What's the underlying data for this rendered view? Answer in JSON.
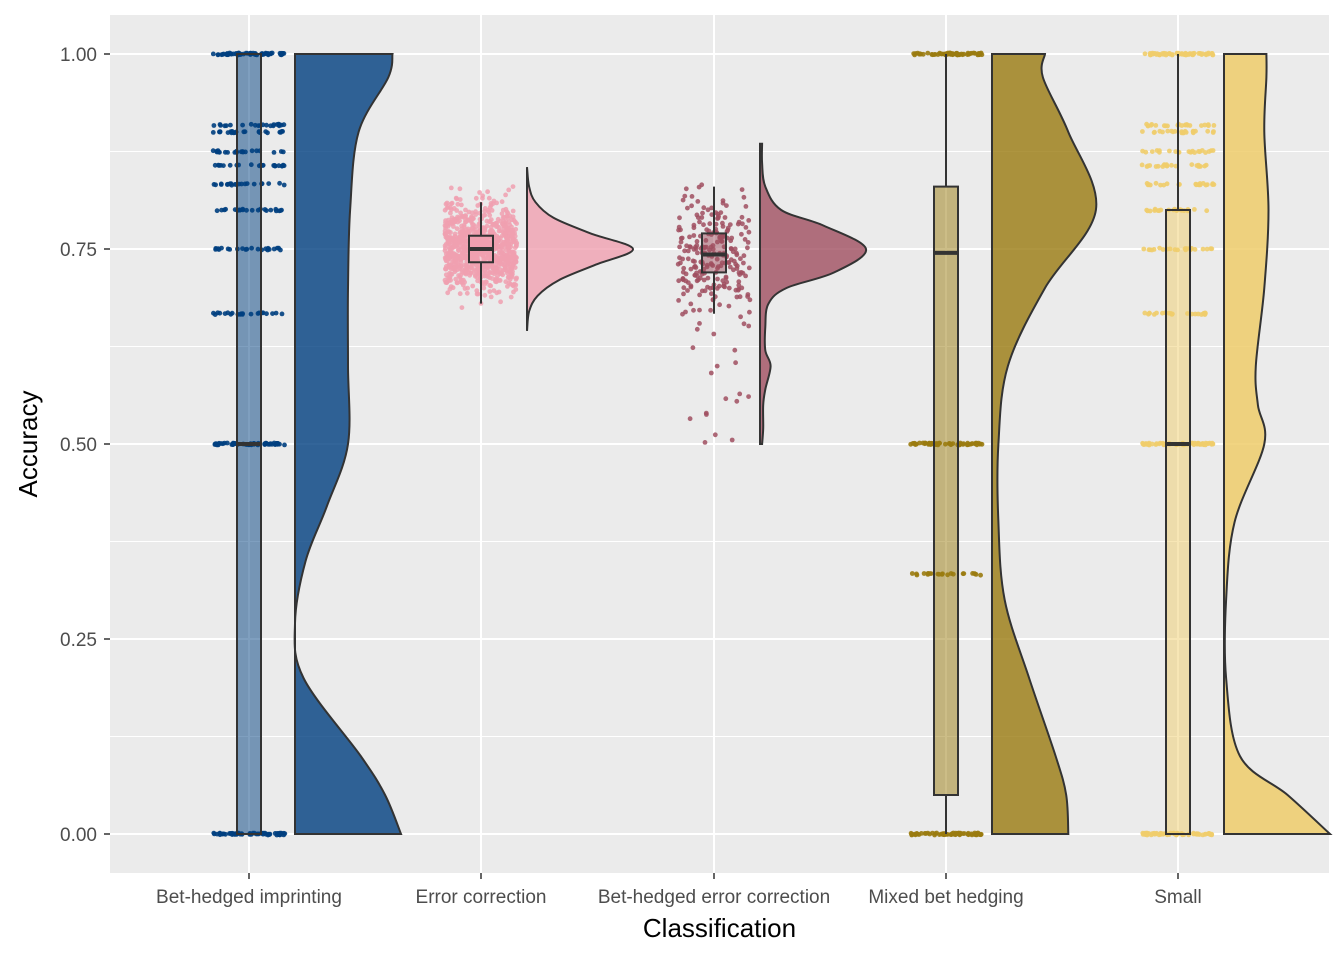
{
  "chart_data": {
    "type": "raincloud",
    "title": "",
    "xlabel": "Classification",
    "ylabel": "Accuracy",
    "ylim": [
      -0.05,
      1.05
    ],
    "y_ticks": [
      0.0,
      0.25,
      0.5,
      0.75,
      1.0
    ],
    "y_tick_labels": [
      "0.00",
      "0.25",
      "0.50",
      "0.75",
      "1.00"
    ],
    "grid": true,
    "legend": "none",
    "categories": [
      "Bet-hedged imprinting",
      "Error correction",
      "Bet-hedged error correction",
      "Mixed bet hedging",
      "Small"
    ],
    "series": [
      {
        "category": "Bet-hedged imprinting",
        "color": "#003F7F",
        "box": {
          "min": 0.0,
          "q1": 0.0,
          "median": 0.5,
          "q3": 1.0,
          "max": 1.0
        },
        "point_levels": [
          0.0,
          0.5,
          0.667,
          0.75,
          0.8,
          0.833,
          0.857,
          0.875,
          0.9,
          0.909,
          1.0
        ],
        "density": [
          [
            0.0,
            1.0
          ],
          [
            0.05,
            0.85
          ],
          [
            0.1,
            0.62
          ],
          [
            0.2,
            0.08
          ],
          [
            0.27,
            0.0
          ],
          [
            0.35,
            0.1
          ],
          [
            0.42,
            0.3
          ],
          [
            0.5,
            0.5
          ],
          [
            0.6,
            0.5
          ],
          [
            0.7,
            0.5
          ],
          [
            0.8,
            0.52
          ],
          [
            0.9,
            0.6
          ],
          [
            0.97,
            0.88
          ],
          [
            1.0,
            0.92
          ]
        ]
      },
      {
        "category": "Error correction",
        "color": "#F0A0B0",
        "box": {
          "min": 0.68,
          "q1": 0.733,
          "median": 0.75,
          "q3": 0.767,
          "max": 0.81
        },
        "point_range": [
          0.65,
          0.85
        ],
        "density": [
          [
            0.645,
            0.0
          ],
          [
            0.67,
            0.02
          ],
          [
            0.69,
            0.1
          ],
          [
            0.71,
            0.3
          ],
          [
            0.73,
            0.65
          ],
          [
            0.75,
            1.0
          ],
          [
            0.77,
            0.6
          ],
          [
            0.79,
            0.25
          ],
          [
            0.81,
            0.08
          ],
          [
            0.83,
            0.02
          ],
          [
            0.855,
            0.0
          ]
        ]
      },
      {
        "category": "Bet-hedged error correction",
        "color": "#A04F60",
        "box": {
          "min": 0.667,
          "q1": 0.72,
          "median": 0.743,
          "q3": 0.77,
          "max": 0.83
        },
        "point_range": [
          0.5,
          0.885
        ],
        "density": [
          [
            0.5,
            0.02
          ],
          [
            0.52,
            0.03
          ],
          [
            0.55,
            0.03
          ],
          [
            0.57,
            0.05
          ],
          [
            0.6,
            0.1
          ],
          [
            0.62,
            0.05
          ],
          [
            0.65,
            0.05
          ],
          [
            0.68,
            0.08
          ],
          [
            0.7,
            0.25
          ],
          [
            0.72,
            0.7
          ],
          [
            0.75,
            1.0
          ],
          [
            0.78,
            0.6
          ],
          [
            0.8,
            0.2
          ],
          [
            0.83,
            0.05
          ],
          [
            0.86,
            0.02
          ],
          [
            0.885,
            0.02
          ]
        ]
      },
      {
        "category": "Mixed bet hedging",
        "color": "#9A7B10",
        "box": {
          "min": 0.0,
          "q1": 0.05,
          "median": 0.745,
          "q3": 0.83,
          "max": 1.0
        },
        "point_levels": [
          0.0,
          0.5,
          0.333,
          1.0
        ],
        "density": [
          [
            0.0,
            0.72
          ],
          [
            0.05,
            0.7
          ],
          [
            0.1,
            0.6
          ],
          [
            0.2,
            0.35
          ],
          [
            0.3,
            0.12
          ],
          [
            0.4,
            0.06
          ],
          [
            0.5,
            0.06
          ],
          [
            0.6,
            0.15
          ],
          [
            0.7,
            0.5
          ],
          [
            0.8,
            0.98
          ],
          [
            0.9,
            0.72
          ],
          [
            0.97,
            0.48
          ],
          [
            1.0,
            0.5
          ]
        ]
      },
      {
        "category": "Small",
        "color": "#EFCD6B",
        "box": {
          "min": 0.0,
          "q1": 0.0,
          "median": 0.5,
          "q3": 0.8,
          "max": 1.0
        },
        "point_levels": [
          0.0,
          0.5,
          0.667,
          0.75,
          0.8,
          0.833,
          0.857,
          0.875,
          0.9,
          0.909,
          1.0
        ],
        "density": [
          [
            0.0,
            1.0
          ],
          [
            0.05,
            0.6
          ],
          [
            0.1,
            0.15
          ],
          [
            0.2,
            0.02
          ],
          [
            0.3,
            0.02
          ],
          [
            0.4,
            0.1
          ],
          [
            0.5,
            0.38
          ],
          [
            0.55,
            0.32
          ],
          [
            0.6,
            0.3
          ],
          [
            0.7,
            0.38
          ],
          [
            0.8,
            0.42
          ],
          [
            0.9,
            0.38
          ],
          [
            0.97,
            0.4
          ],
          [
            1.0,
            0.4
          ]
        ]
      }
    ]
  }
}
